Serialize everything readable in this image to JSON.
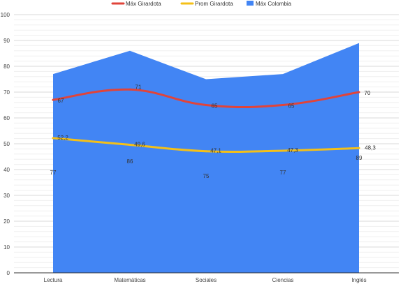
{
  "chart_data": {
    "type": "line",
    "title": "",
    "xlabel": "",
    "ylabel": "",
    "ylim": [
      0,
      100
    ],
    "yticks": [
      0,
      10,
      20,
      30,
      40,
      50,
      60,
      70,
      80,
      90,
      100
    ],
    "grid": true,
    "legend_position": "top",
    "categories": [
      "Lectura",
      "Matemáticas",
      "Sociales",
      "Ciencias",
      "Inglés"
    ],
    "series": [
      {
        "name": "Máx Girardota",
        "kind": "line",
        "color": "#e0443a",
        "values": [
          67,
          71,
          65,
          65,
          70
        ],
        "labels": [
          "67",
          "71",
          "65",
          "65",
          "70"
        ]
      },
      {
        "name": "Prom Girardota",
        "kind": "line",
        "color": "#f4c018",
        "values": [
          52.2,
          49.6,
          47.1,
          47.3,
          48.3
        ],
        "labels": [
          "52,2",
          "49,6",
          "47,1",
          "47,3",
          "48,3"
        ]
      },
      {
        "name": "Máx Colombia",
        "kind": "area",
        "color": "#4285f4",
        "values": [
          77,
          86,
          75,
          77,
          89
        ],
        "labels": [
          "77",
          "86",
          "75",
          "77",
          "89"
        ]
      }
    ]
  }
}
